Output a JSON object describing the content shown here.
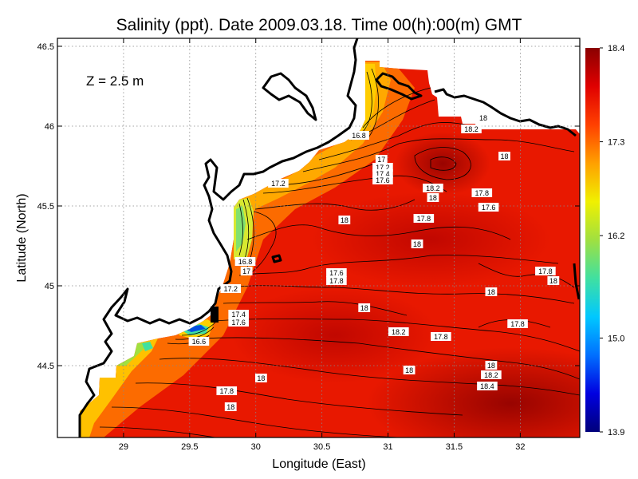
{
  "chart_data": {
    "type": "heatmap",
    "title": "Salinity (ppt). Date 2009.03.18. Time 00(h):00(m) GMT",
    "xlabel": "Longitude (East)",
    "ylabel": "Latitude (North)",
    "annotation": "Z = 2.5 m",
    "xlim": [
      28.5,
      32.45
    ],
    "ylim": [
      44.05,
      46.55
    ],
    "xticks": [
      29,
      29.5,
      30,
      30.5,
      31,
      31.5,
      32
    ],
    "xtick_labels": [
      "29",
      "29.5",
      "30",
      "30.5",
      "31",
      "31.5",
      "32"
    ],
    "yticks": [
      44.5,
      45,
      45.5,
      46,
      46.5
    ],
    "ytick_labels": [
      "44.5",
      "45",
      "45.5",
      "46",
      "46.5"
    ],
    "grid": true,
    "colorbar": {
      "min": 13.9,
      "max": 18.4,
      "ticks": [
        13.9,
        15.0,
        16.2,
        17.3,
        18.4
      ],
      "tick_labels": [
        "13.9",
        "15.0",
        "16.2",
        "17.3",
        "18.4"
      ],
      "colors": [
        "#00007a",
        "#0000e0",
        "#0070ff",
        "#00c8ff",
        "#40e0a0",
        "#a0e040",
        "#f0f000",
        "#ffa000",
        "#ff4000",
        "#e00000",
        "#8a0000"
      ]
    },
    "contour_labels": [
      {
        "lon": 30.78,
        "lat": 45.94,
        "value": "16.8"
      },
      {
        "lon": 30.95,
        "lat": 45.79,
        "value": "17"
      },
      {
        "lon": 30.96,
        "lat": 45.74,
        "value": "17.2"
      },
      {
        "lon": 30.96,
        "lat": 45.7,
        "value": "17.4"
      },
      {
        "lon": 30.96,
        "lat": 45.66,
        "value": "17.6"
      },
      {
        "lon": 30.17,
        "lat": 45.64,
        "value": "17.2"
      },
      {
        "lon": 31.72,
        "lat": 46.05,
        "value": "18"
      },
      {
        "lon": 31.63,
        "lat": 45.98,
        "value": "18.2"
      },
      {
        "lon": 31.88,
        "lat": 45.81,
        "value": "18"
      },
      {
        "lon": 31.34,
        "lat": 45.61,
        "value": "18.2"
      },
      {
        "lon": 31.34,
        "lat": 45.55,
        "value": "18"
      },
      {
        "lon": 31.71,
        "lat": 45.58,
        "value": "17.8"
      },
      {
        "lon": 31.76,
        "lat": 45.49,
        "value": "17.6"
      },
      {
        "lon": 31.27,
        "lat": 45.42,
        "value": "17.8"
      },
      {
        "lon": 30.67,
        "lat": 45.41,
        "value": "18"
      },
      {
        "lon": 31.22,
        "lat": 45.26,
        "value": "18"
      },
      {
        "lon": 29.92,
        "lat": 45.15,
        "value": "16.8"
      },
      {
        "lon": 29.93,
        "lat": 45.09,
        "value": "17"
      },
      {
        "lon": 29.81,
        "lat": 44.98,
        "value": "17.2"
      },
      {
        "lon": 29.87,
        "lat": 44.82,
        "value": "17.4"
      },
      {
        "lon": 29.87,
        "lat": 44.77,
        "value": "17.6"
      },
      {
        "lon": 29.57,
        "lat": 44.65,
        "value": "16.6"
      },
      {
        "lon": 30.61,
        "lat": 45.08,
        "value": "17.6"
      },
      {
        "lon": 30.61,
        "lat": 45.03,
        "value": "17.8"
      },
      {
        "lon": 30.82,
        "lat": 44.86,
        "value": "18"
      },
      {
        "lon": 31.08,
        "lat": 44.71,
        "value": "18.2"
      },
      {
        "lon": 31.4,
        "lat": 44.68,
        "value": "17.8"
      },
      {
        "lon": 32.19,
        "lat": 45.09,
        "value": "17.8"
      },
      {
        "lon": 32.25,
        "lat": 45.03,
        "value": "18"
      },
      {
        "lon": 31.78,
        "lat": 44.96,
        "value": "18"
      },
      {
        "lon": 31.98,
        "lat": 44.76,
        "value": "17.8"
      },
      {
        "lon": 31.78,
        "lat": 44.5,
        "value": "18"
      },
      {
        "lon": 31.78,
        "lat": 44.44,
        "value": "18.2"
      },
      {
        "lon": 31.75,
        "lat": 44.37,
        "value": "18.4"
      },
      {
        "lon": 31.16,
        "lat": 44.47,
        "value": "18"
      },
      {
        "lon": 30.04,
        "lat": 44.42,
        "value": "18"
      },
      {
        "lon": 29.78,
        "lat": 44.34,
        "value": "17.8"
      },
      {
        "lon": 29.81,
        "lat": 44.24,
        "value": "18"
      }
    ]
  }
}
